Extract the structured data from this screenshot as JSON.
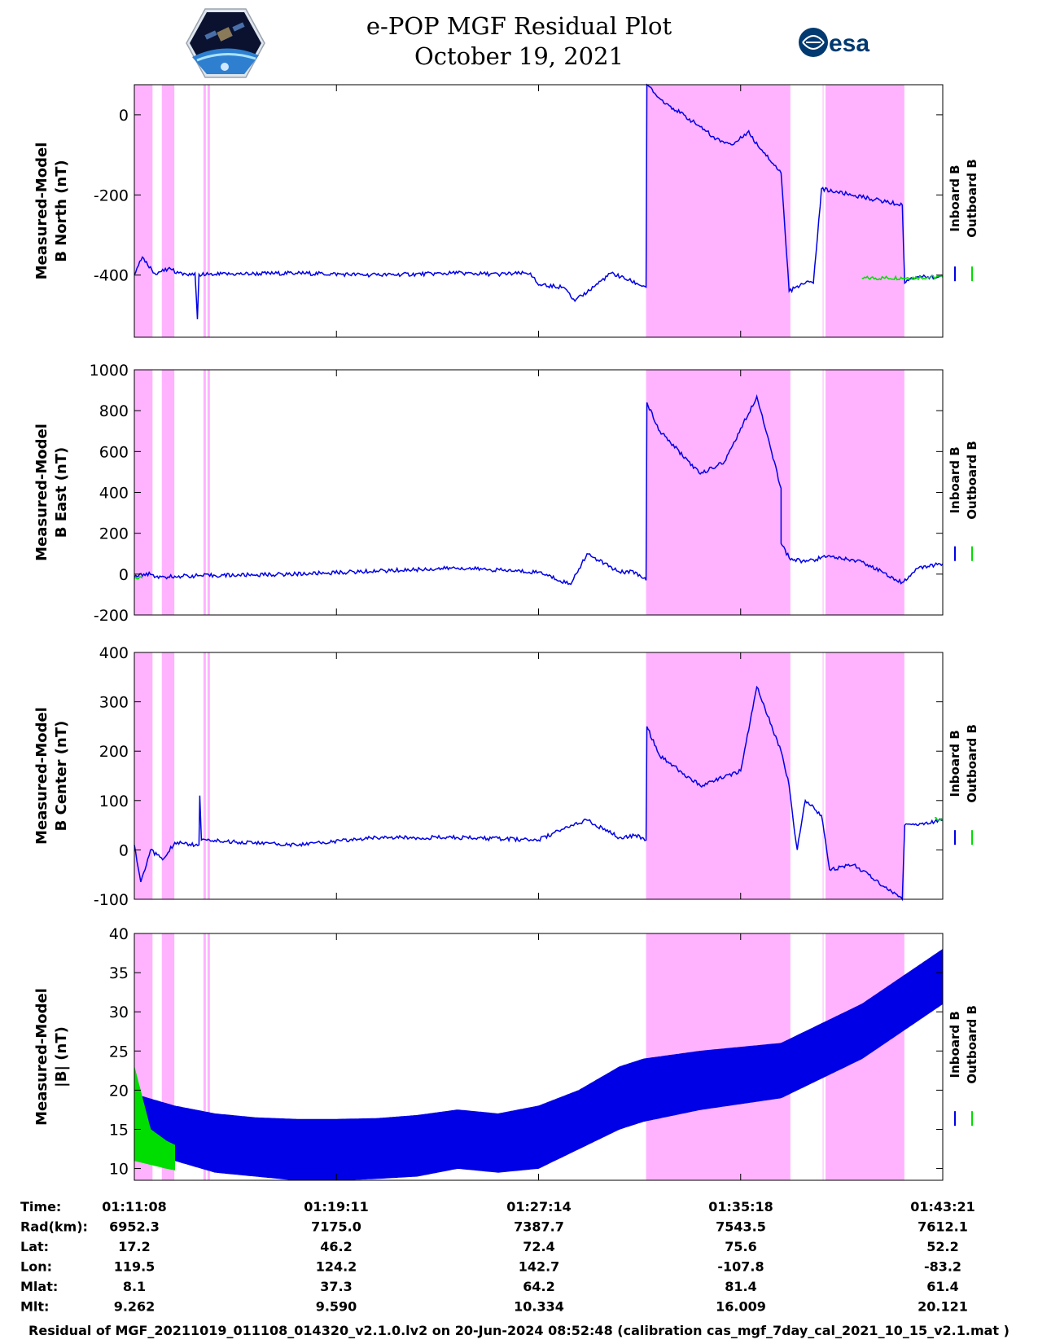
{
  "title": {
    "line1": "e-POP MGF Residual Plot",
    "line2": "October 19, 2021"
  },
  "logos": {
    "left": "cassiope-satellite-logo",
    "right_text": "esa"
  },
  "colors": {
    "inboard": "#0000e6",
    "outboard": "#00dd00",
    "highlight": "#ffb3ff"
  },
  "legend": {
    "inboard": "Inboard B",
    "outboard": "Outboard B"
  },
  "chart_data": [
    {
      "type": "line",
      "ylabel": [
        "Measured-Model",
        "B North (nT)"
      ],
      "ylim": [
        -555,
        75
      ],
      "yticks": [
        0,
        -200,
        -400
      ],
      "series": [
        {
          "name": "Inboard B",
          "x": [
            0,
            0.01,
            0.025,
            0.045,
            0.06,
            0.075,
            0.078,
            0.08,
            0.1,
            0.2,
            0.3,
            0.4,
            0.45,
            0.49,
            0.5,
            0.53,
            0.545,
            0.59,
            0.633,
            0.634,
            0.65,
            0.7,
            0.72,
            0.74,
            0.758,
            0.76,
            0.763,
            0.8,
            0.81,
            0.83,
            0.84,
            0.85,
            0.95,
            0.953,
            0.956,
            0.97,
            1.0
          ],
          "y": [
            -400,
            -355,
            -395,
            -385,
            -400,
            -395,
            -510,
            -398,
            -398,
            -395,
            -400,
            -395,
            -398,
            -395,
            -425,
            -430,
            -465,
            -395,
            -430,
            75,
            40,
            -30,
            -60,
            -75,
            -45,
            -40,
            -55,
            -145,
            -440,
            -420,
            -420,
            -185,
            -225,
            -420,
            -412,
            -405,
            -405
          ]
        },
        {
          "name": "Outboard B",
          "x": [
            0.9,
            1.0
          ],
          "y": [
            -408,
            -405
          ]
        }
      ]
    },
    {
      "type": "line",
      "ylabel": [
        "Measured-Model",
        "B East (nT)"
      ],
      "ylim": [
        -200,
        1000
      ],
      "yticks": [
        1000,
        800,
        600,
        400,
        200,
        0,
        -200
      ],
      "series": [
        {
          "name": "Inboard B",
          "x": [
            0,
            0.015,
            0.03,
            0.05,
            0.2,
            0.3,
            0.4,
            0.5,
            0.54,
            0.56,
            0.6,
            0.62,
            0.633,
            0.634,
            0.65,
            0.7,
            0.73,
            0.77,
            0.8,
            0.8,
            0.81,
            0.83,
            0.86,
            0.9,
            0.95,
            0.97,
            1.0
          ],
          "y": [
            -15,
            5,
            -20,
            -10,
            0,
            15,
            30,
            10,
            -50,
            100,
            10,
            10,
            -30,
            840,
            700,
            490,
            550,
            870,
            420,
            150,
            80,
            60,
            90,
            60,
            -40,
            30,
            50
          ]
        },
        {
          "name": "Outboard B",
          "x": [
            0,
            0.01
          ],
          "y": [
            -22,
            -20
          ]
        }
      ]
    },
    {
      "type": "line",
      "ylabel": [
        "Measured-Model",
        "B Center (nT)"
      ],
      "ylim": [
        -100,
        400
      ],
      "yticks": [
        400,
        300,
        200,
        100,
        0,
        -100
      ],
      "series": [
        {
          "name": "Inboard B",
          "x": [
            0,
            0.008,
            0.02,
            0.035,
            0.05,
            0.08,
            0.081,
            0.083,
            0.2,
            0.3,
            0.4,
            0.5,
            0.54,
            0.56,
            0.6,
            0.62,
            0.633,
            0.634,
            0.65,
            0.7,
            0.75,
            0.77,
            0.8,
            0.81,
            0.815,
            0.82,
            0.83,
            0.85,
            0.86,
            0.89,
            0.95,
            0.953,
            0.97,
            1.0
          ],
          "y": [
            10,
            -65,
            0,
            -20,
            15,
            10,
            110,
            20,
            10,
            25,
            25,
            20,
            50,
            60,
            25,
            30,
            20,
            250,
            190,
            130,
            160,
            330,
            200,
            130,
            60,
            0,
            100,
            70,
            -40,
            -30,
            -100,
            50,
            50,
            60
          ]
        },
        {
          "name": "Outboard B",
          "x": [
            0.99,
            1.0
          ],
          "y": [
            65,
            60
          ]
        }
      ]
    },
    {
      "type": "area",
      "ylabel": [
        "Measured-Model",
        "|B| (nT)"
      ],
      "ylim": [
        8.5,
        40
      ],
      "yticks": [
        40,
        35,
        30,
        25,
        20,
        15,
        10
      ],
      "series": [
        {
          "name": "Inboard B",
          "x": [
            0,
            0.05,
            0.1,
            0.15,
            0.2,
            0.25,
            0.3,
            0.35,
            0.4,
            0.45,
            0.5,
            0.55,
            0.6,
            0.63,
            0.7,
            0.8,
            0.9,
            1.0
          ],
          "upper": [
            19.5,
            18,
            17,
            16.5,
            16.3,
            16.3,
            16.4,
            16.8,
            17.5,
            17,
            18,
            20,
            23,
            24,
            25,
            26,
            31,
            38
          ],
          "lower": [
            13,
            11,
            9.5,
            9,
            8.5,
            8.5,
            8.7,
            9,
            10,
            9.5,
            10,
            12.5,
            15,
            16,
            17.5,
            19,
            24,
            31
          ]
        },
        {
          "name": "Outboard B",
          "x": [
            0,
            0.02,
            0.04,
            0.05
          ],
          "upper": [
            23,
            15,
            13.5,
            13
          ],
          "lower": [
            11,
            10.5,
            10,
            9.8
          ]
        }
      ]
    }
  ],
  "highlight_x_ranges": [
    [
      0.0,
      0.0225
    ],
    [
      0.034,
      0.0495
    ],
    [
      0.0855,
      0.0885
    ],
    [
      0.0905,
      0.0935
    ],
    [
      0.633,
      0.8115
    ],
    [
      0.8515,
      0.852
    ],
    [
      0.855,
      0.9525
    ]
  ],
  "time_ticks_pos": [
    0,
    0.25,
    0.5,
    0.75,
    1.0
  ],
  "time_labels": [
    "01:11:08",
    "01:19:11",
    "01:27:14",
    "01:35:18",
    "01:43:21"
  ],
  "ephemeris": [
    {
      "label": "Time:",
      "values": [
        "01:11:08",
        "01:19:11",
        "01:27:14",
        "01:35:18",
        "01:43:21"
      ]
    },
    {
      "label": "Rad(km):",
      "values": [
        "6952.3",
        "7175.0",
        "7387.7",
        "7543.5",
        "7612.1"
      ]
    },
    {
      "label": "Lat:",
      "values": [
        "17.2",
        "46.2",
        "72.4",
        "75.6",
        "52.2"
      ]
    },
    {
      "label": "Lon:",
      "values": [
        "119.5",
        "124.2",
        "142.7",
        "-107.8",
        "-83.2"
      ]
    },
    {
      "label": "Mlat:",
      "values": [
        "8.1",
        "37.3",
        "64.2",
        "81.4",
        "61.4"
      ]
    },
    {
      "label": "Mlt:",
      "values": [
        "9.262",
        "9.590",
        "10.334",
        "16.009",
        "20.121"
      ]
    }
  ],
  "footer": "Residual of MGF_20211019_011108_014320_v2.1.0.lv2 on 20-Jun-2024 08:52:48 (calibration cas_mgf_7day_cal_2021_10_15_v2.1.mat )"
}
